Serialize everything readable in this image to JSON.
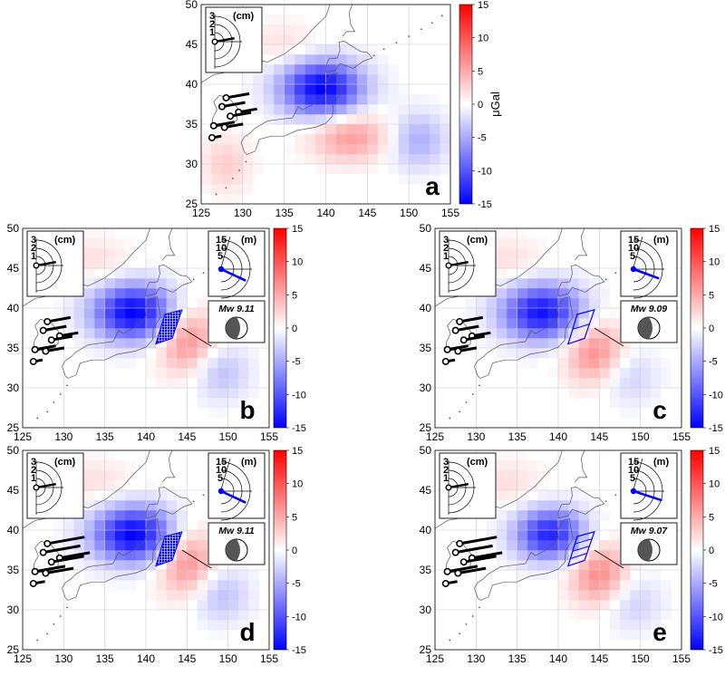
{
  "colors": {
    "positive": "#ff0000",
    "negative": "#0000ff",
    "neutral": "#ffffff",
    "fault": "#0000ff",
    "arrow": "#000000"
  },
  "chart_data": [
    {
      "type": "heatmap",
      "panel_label": "a",
      "x_ticks": [
        "125",
        "130",
        "135",
        "140",
        "145",
        "150",
        "155"
      ],
      "y_ticks": [
        "25",
        "30",
        "35",
        "40",
        "45",
        "50"
      ],
      "xlim": [
        125,
        155
      ],
      "ylim": [
        25,
        50
      ],
      "colorbar": {
        "ticks": [
          "15",
          "10",
          "5",
          "0",
          "-5",
          "-10",
          "-15"
        ],
        "unit": "μGal",
        "range": [
          -15,
          15
        ]
      },
      "anomalies": [
        {
          "lon": 139.5,
          "lat": 39.5,
          "value": -15,
          "spread_lon": 3.5,
          "spread_lat": 2.5
        },
        {
          "lon": 143.0,
          "lat": 33.5,
          "value": 6,
          "spread_lon": 3.5,
          "spread_lat": 2.2
        },
        {
          "lon": 135.0,
          "lat": 45.0,
          "value": 2,
          "spread_lon": 3.0,
          "spread_lat": 2.0
        },
        {
          "lon": 151.0,
          "lat": 33.0,
          "value": -5,
          "spread_lon": 2.5,
          "spread_lat": 2.5
        },
        {
          "lon": 128.0,
          "lat": 30.0,
          "value": 3,
          "spread_lon": 2.0,
          "spread_lat": 2.5
        }
      ],
      "scale_inset": {
        "unit": "(cm)",
        "ticks": [
          "3",
          "2",
          "1"
        ],
        "vector_length_cm": 1.0,
        "vector_azimuth_deg": 80
      },
      "station_vectors": [
        {
          "lon": 128.0,
          "lat": 38.3,
          "length": 1.0
        },
        {
          "lon": 127.5,
          "lat": 37.2,
          "length": 1.0
        },
        {
          "lon": 129.5,
          "lat": 36.5,
          "length": 0.8
        },
        {
          "lon": 128.5,
          "lat": 36.0,
          "length": 0.9
        },
        {
          "lon": 126.5,
          "lat": 34.8,
          "length": 0.9
        },
        {
          "lon": 127.8,
          "lat": 34.6,
          "length": 0.8
        },
        {
          "lon": 126.3,
          "lat": 33.3,
          "length": 0.4
        }
      ]
    },
    {
      "type": "heatmap",
      "panel_label": "b",
      "x_ticks": [
        "125",
        "130",
        "135",
        "140",
        "145",
        "150",
        "155"
      ],
      "y_ticks": [
        "25",
        "30",
        "35",
        "40",
        "45",
        "50"
      ],
      "xlim": [
        125,
        155
      ],
      "ylim": [
        25,
        50
      ],
      "colorbar": {
        "ticks": [
          "15",
          "10",
          "5",
          "0",
          "-5",
          "-10",
          "-15"
        ],
        "range": [
          -15,
          15
        ]
      },
      "anomalies": [
        {
          "lon": 138.5,
          "lat": 39.5,
          "value": -15,
          "spread_lon": 3.5,
          "spread_lat": 2.5
        },
        {
          "lon": 145.0,
          "lat": 36.0,
          "value": 7,
          "spread_lon": 2.5,
          "spread_lat": 3.0
        },
        {
          "lon": 149.0,
          "lat": 32.0,
          "value": -4,
          "spread_lon": 2.5,
          "spread_lat": 2.5
        },
        {
          "lon": 134.0,
          "lat": 46.0,
          "value": 2,
          "spread_lon": 3.0,
          "spread_lat": 2.0
        }
      ],
      "scale_inset": {
        "unit": "(cm)",
        "ticks": [
          "3",
          "2",
          "1"
        ],
        "vector_length_cm": 1.0,
        "vector_azimuth_deg": 80
      },
      "slip_inset": {
        "unit": "(m)",
        "ticks": [
          "15",
          "10",
          "5"
        ],
        "vector_length_m": 10,
        "vector_azimuth_deg": 115
      },
      "magnitude": "Mw 9.11",
      "fault_style": "filled",
      "station_vectors": [
        {
          "lon": 128.0,
          "lat": 38.3,
          "length": 1.0
        },
        {
          "lon": 127.5,
          "lat": 37.2,
          "length": 1.0
        },
        {
          "lon": 129.5,
          "lat": 36.5,
          "length": 0.8
        },
        {
          "lon": 128.5,
          "lat": 36.0,
          "length": 0.9
        },
        {
          "lon": 126.5,
          "lat": 34.8,
          "length": 0.9
        },
        {
          "lon": 127.8,
          "lat": 34.6,
          "length": 0.8
        },
        {
          "lon": 126.3,
          "lat": 33.3,
          "length": 0.4
        }
      ]
    },
    {
      "type": "heatmap",
      "panel_label": "c",
      "x_ticks": [
        "125",
        "130",
        "135",
        "140",
        "145",
        "150",
        "155"
      ],
      "y_ticks": [
        "25",
        "30",
        "35",
        "40",
        "45",
        "50"
      ],
      "xlim": [
        125,
        155
      ],
      "ylim": [
        25,
        50
      ],
      "colorbar": {
        "ticks": [
          "15",
          "10",
          "5",
          "0",
          "-5",
          "-10",
          "-15"
        ],
        "range": [
          -15,
          15
        ]
      },
      "anomalies": [
        {
          "lon": 138.0,
          "lat": 39.5,
          "value": -14,
          "spread_lon": 3.5,
          "spread_lat": 2.5
        },
        {
          "lon": 144.5,
          "lat": 34.5,
          "value": 7,
          "spread_lon": 2.5,
          "spread_lat": 2.8
        },
        {
          "lon": 148.5,
          "lat": 31.5,
          "value": -3,
          "spread_lon": 2.5,
          "spread_lat": 2.5
        },
        {
          "lon": 134.0,
          "lat": 46.0,
          "value": 2,
          "spread_lon": 3.0,
          "spread_lat": 2.0
        }
      ],
      "scale_inset": {
        "unit": "(cm)",
        "ticks": [
          "3",
          "2",
          "1"
        ],
        "vector_length_cm": 1.0,
        "vector_azimuth_deg": 80
      },
      "slip_inset": {
        "unit": "(m)",
        "ticks": [
          "15",
          "10",
          "5"
        ],
        "vector_length_m": 10,
        "vector_azimuth_deg": 110
      },
      "magnitude": "Mw 9.09",
      "fault_style": "outline",
      "station_vectors": [
        {
          "lon": 128.0,
          "lat": 38.3,
          "length": 1.0
        },
        {
          "lon": 127.5,
          "lat": 37.2,
          "length": 1.0
        },
        {
          "lon": 129.5,
          "lat": 36.5,
          "length": 0.8
        },
        {
          "lon": 128.5,
          "lat": 36.0,
          "length": 0.9
        },
        {
          "lon": 126.5,
          "lat": 34.8,
          "length": 0.9
        },
        {
          "lon": 127.8,
          "lat": 34.6,
          "length": 0.8
        },
        {
          "lon": 126.3,
          "lat": 33.3,
          "length": 0.4
        }
      ]
    },
    {
      "type": "heatmap",
      "panel_label": "d",
      "x_ticks": [
        "125",
        "130",
        "135",
        "140",
        "145",
        "150",
        "155"
      ],
      "y_ticks": [
        "25",
        "30",
        "35",
        "40",
        "45",
        "50"
      ],
      "xlim": [
        125,
        155
      ],
      "ylim": [
        25,
        50
      ],
      "colorbar": {
        "ticks": [
          "15",
          "10",
          "5",
          "0",
          "-5",
          "-10",
          "-15"
        ],
        "range": [
          -15,
          15
        ]
      },
      "anomalies": [
        {
          "lon": 138.5,
          "lat": 39.5,
          "value": -15,
          "spread_lon": 3.5,
          "spread_lat": 2.5
        },
        {
          "lon": 145.0,
          "lat": 36.0,
          "value": 7,
          "spread_lon": 2.5,
          "spread_lat": 3.0
        },
        {
          "lon": 149.0,
          "lat": 32.0,
          "value": -4,
          "spread_lon": 2.5,
          "spread_lat": 2.5
        },
        {
          "lon": 134.0,
          "lat": 46.0,
          "value": 2,
          "spread_lon": 3.0,
          "spread_lat": 2.0
        }
      ],
      "scale_inset": {
        "unit": "(cm)",
        "ticks": [
          "3",
          "2",
          "1"
        ],
        "vector_length_cm": 1.0,
        "vector_azimuth_deg": 80
      },
      "slip_inset": {
        "unit": "(m)",
        "ticks": [
          "15",
          "10",
          "5"
        ],
        "vector_length_m": 10,
        "vector_azimuth_deg": 115
      },
      "magnitude": "Mw 9.11",
      "fault_style": "filled",
      "station_vectors": [
        {
          "lon": 128.0,
          "lat": 38.3,
          "length": 1.6
        },
        {
          "lon": 127.5,
          "lat": 37.2,
          "length": 1.6
        },
        {
          "lon": 129.5,
          "lat": 36.5,
          "length": 1.3
        },
        {
          "lon": 128.5,
          "lat": 36.0,
          "length": 1.4
        },
        {
          "lon": 126.5,
          "lat": 34.8,
          "length": 1.3
        },
        {
          "lon": 127.8,
          "lat": 34.6,
          "length": 1.2
        },
        {
          "lon": 126.3,
          "lat": 33.3,
          "length": 0.5
        }
      ]
    },
    {
      "type": "heatmap",
      "panel_label": "e",
      "x_ticks": [
        "125",
        "130",
        "135",
        "140",
        "145",
        "150",
        "155"
      ],
      "y_ticks": [
        "25",
        "30",
        "35",
        "40",
        "45",
        "50"
      ],
      "xlim": [
        125,
        155
      ],
      "ylim": [
        25,
        50
      ],
      "colorbar": {
        "ticks": [
          "15",
          "10",
          "5",
          "0",
          "-5",
          "-10",
          "-15"
        ],
        "range": [
          -15,
          15
        ]
      },
      "anomalies": [
        {
          "lon": 139.0,
          "lat": 39.5,
          "value": -13,
          "spread_lon": 3.0,
          "spread_lat": 2.3
        },
        {
          "lon": 145.0,
          "lat": 34.5,
          "value": 7,
          "spread_lon": 2.5,
          "spread_lat": 2.8
        },
        {
          "lon": 149.0,
          "lat": 31.0,
          "value": -3,
          "spread_lon": 2.5,
          "spread_lat": 2.5
        },
        {
          "lon": 134.0,
          "lat": 46.0,
          "value": 2,
          "spread_lon": 3.0,
          "spread_lat": 2.0
        }
      ],
      "scale_inset": {
        "unit": "(cm)",
        "ticks": [
          "3",
          "2",
          "1"
        ],
        "vector_length_cm": 1.0,
        "vector_azimuth_deg": 80
      },
      "slip_inset": {
        "unit": "(m)",
        "ticks": [
          "15",
          "10",
          "5"
        ],
        "vector_length_m": 11,
        "vector_azimuth_deg": 108
      },
      "magnitude": "Mw 9.07",
      "fault_style": "outline",
      "station_vectors": [
        {
          "lon": 128.0,
          "lat": 38.3,
          "length": 1.6
        },
        {
          "lon": 127.5,
          "lat": 37.2,
          "length": 1.6
        },
        {
          "lon": 129.5,
          "lat": 36.5,
          "length": 1.3
        },
        {
          "lon": 128.5,
          "lat": 36.0,
          "length": 1.4
        },
        {
          "lon": 126.5,
          "lat": 34.8,
          "length": 1.3
        },
        {
          "lon": 127.8,
          "lat": 34.6,
          "length": 1.2
        },
        {
          "lon": 126.3,
          "lat": 33.3,
          "length": 0.5
        }
      ]
    }
  ]
}
